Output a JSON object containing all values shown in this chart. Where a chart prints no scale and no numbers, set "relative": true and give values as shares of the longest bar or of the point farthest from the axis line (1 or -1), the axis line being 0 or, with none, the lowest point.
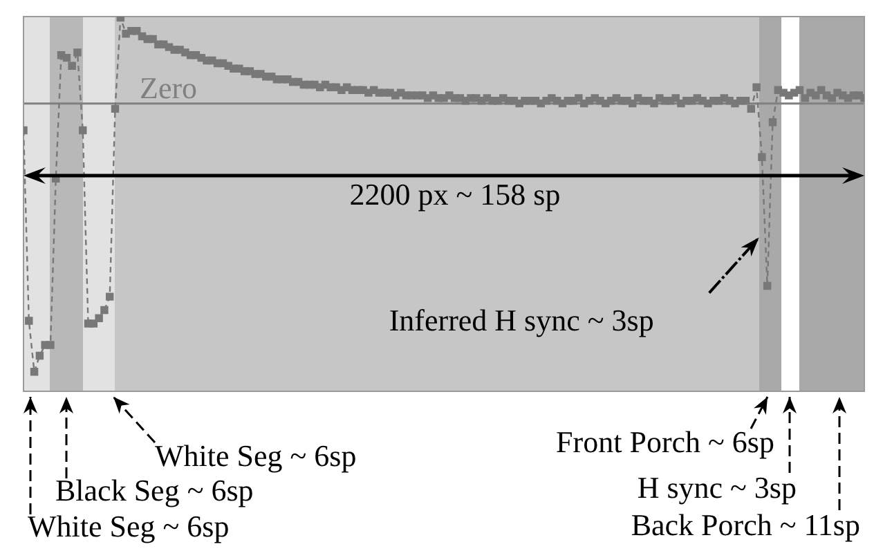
{
  "chart_data": {
    "type": "line",
    "relative": true,
    "marker": "square",
    "line_style": "dashed",
    "categories": [
      null,
      null,
      null,
      null,
      null,
      null,
      null,
      null,
      null,
      null,
      null,
      null,
      null,
      null,
      null,
      null,
      null,
      null,
      null,
      null,
      null,
      null,
      null,
      null,
      null,
      null,
      null,
      null,
      null,
      null,
      null,
      null,
      null,
      null,
      null,
      null,
      null,
      null,
      null,
      null,
      null,
      null,
      null,
      null,
      null,
      null,
      null,
      null,
      null,
      null,
      null,
      null,
      null,
      null,
      null,
      null,
      null,
      null,
      null,
      null,
      null,
      null,
      null,
      null,
      null,
      null,
      null,
      null,
      null,
      null,
      null,
      null,
      null,
      null,
      null,
      null,
      null,
      null,
      null,
      null,
      null,
      null,
      null,
      null,
      null,
      null,
      null,
      null,
      null,
      null,
      null,
      null,
      null,
      null,
      null,
      null,
      null,
      null,
      null,
      null,
      null,
      null,
      null,
      null,
      null,
      null,
      null,
      null,
      null,
      null,
      null,
      null,
      null,
      null,
      null,
      null,
      null,
      null,
      null,
      null,
      null,
      null,
      null,
      null,
      null,
      null,
      null,
      null,
      null,
      null,
      null,
      null,
      null,
      null,
      null,
      null,
      null,
      null,
      null,
      null,
      null,
      null,
      null,
      null,
      null,
      null,
      null,
      null,
      null,
      null,
      null,
      null,
      null,
      null,
      null,
      null,
      null
    ],
    "series": [
      {
        "color": "#787878",
        "values": [
          -0.1,
          -0.81,
          -1,
          -0.94,
          -0.9,
          -0.9,
          -0.28,
          0.18,
          0.17,
          0.14,
          0.19,
          -0.1,
          -0.82,
          -0.82,
          -0.8,
          -0.77,
          -0.72,
          -0.02,
          0.32,
          0.26,
          0.27,
          0.27,
          0.25,
          0.24,
          0.24,
          0.22,
          0.22,
          0.21,
          0.2,
          0.2,
          0.19,
          0.18,
          0.18,
          0.17,
          0.16,
          0.16,
          0.15,
          0.15,
          0.14,
          0.13,
          0.13,
          0.12,
          0.12,
          0.11,
          0.11,
          0.1,
          0.1,
          0.09,
          0.09,
          0.09,
          0.08,
          0.08,
          0.07,
          0.07,
          0.07,
          0.06,
          0.07,
          0.06,
          0.06,
          0.05,
          0.06,
          0.05,
          0.05,
          0.05,
          0.04,
          0.05,
          0.04,
          0.04,
          0.04,
          0.03,
          0.04,
          0.03,
          0.03,
          0.03,
          0.03,
          0.02,
          0.03,
          0.02,
          0.02,
          0.03,
          0.02,
          0.02,
          0.01,
          0.02,
          0.02,
          0.01,
          0.02,
          0.01,
          0.01,
          0.02,
          0.01,
          0.01,
          0.0,
          0.01,
          0.01,
          0.01,
          0.0,
          0.01,
          0.02,
          0.01,
          0.0,
          0.01,
          0.01,
          0.02,
          0.0,
          0.01,
          0.02,
          0.01,
          0.0,
          0.01,
          0.02,
          0.01,
          0.01,
          0.0,
          0.02,
          0.01,
          0.01,
          0.0,
          0.02,
          0.01,
          0.01,
          0.02,
          0.0,
          0.01,
          0.01,
          0.02,
          0.01,
          0.0,
          0.01,
          0.01,
          0.02,
          0.01,
          0.0,
          0.01,
          0.01,
          -0.02,
          0.06,
          -0.2,
          -0.68,
          -0.07,
          0.05,
          0.04,
          0.03,
          0.04,
          0.05,
          0.02,
          0.04,
          0.03,
          0.05,
          0.03,
          0.02,
          0.04,
          0.03,
          0.02,
          0.03,
          0.03,
          0.02
        ]
      }
    ],
    "annotations": [
      "Zero",
      "2200 px ~ 158 sp",
      "Inferred H sync ~ 3sp",
      "White Seg ~ 6sp",
      "Black Seg ~ 6sp",
      "White Seg ~ 6sp",
      "Front Porch ~ 6sp",
      "H sync ~ 3sp",
      "Back Porch ~ 11sp"
    ]
  }
}
